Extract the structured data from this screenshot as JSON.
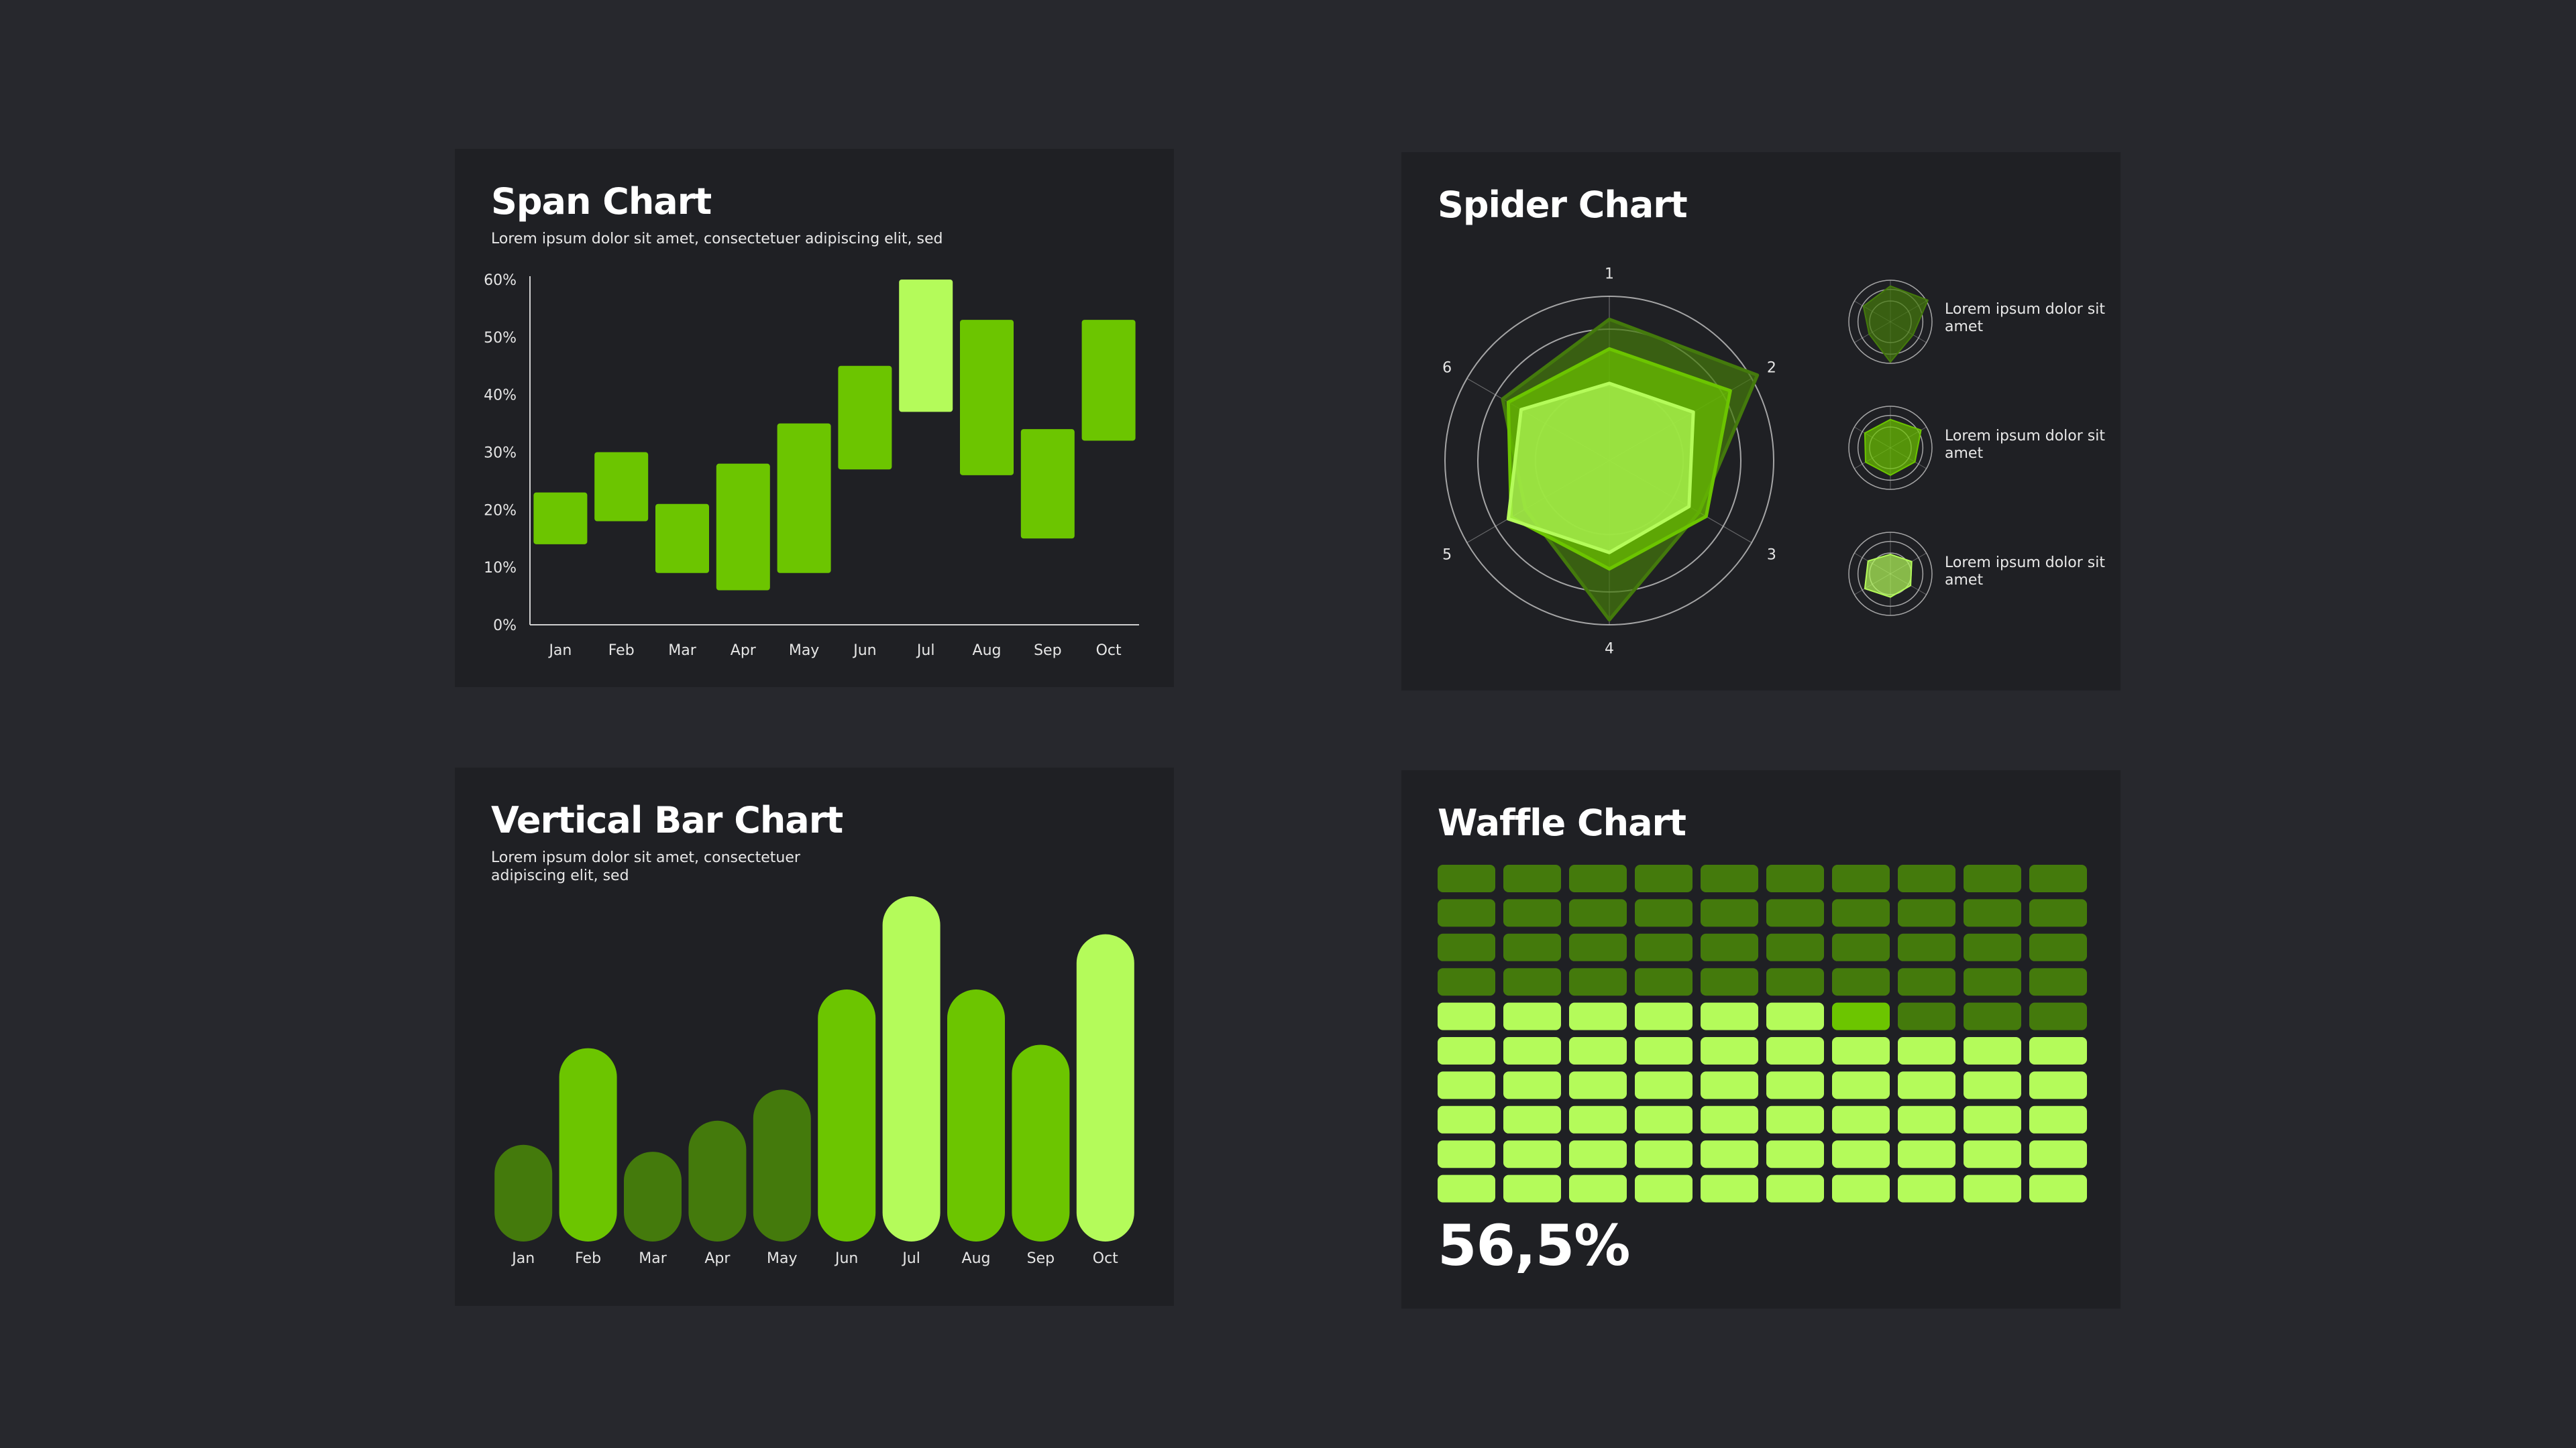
{
  "colors": {
    "background": "#27282d",
    "panel": "#1f2024",
    "dark_green": "#447a0c",
    "mid_green": "#6cc500",
    "light_green": "#b4fb5a"
  },
  "span": {
    "title": "Span Chart",
    "subtitle": "Lorem ipsum dolor sit amet, consectetuer adipiscing elit, sed"
  },
  "spider": {
    "title": "Spider Chart",
    "legend": [
      {
        "label": "Lorem ipsum dolor sit amet",
        "color": "#b4fb5a"
      },
      {
        "label": "Lorem ipsum dolor sit amet",
        "color": "#6cc500"
      },
      {
        "label": "Lorem ipsum dolor sit amet",
        "color": "#447a0c"
      }
    ]
  },
  "vbar": {
    "title": "Vertical Bar Chart",
    "subtitle": "Lorem ipsum dolor sit amet, consectetuer adipiscing elit, sed"
  },
  "waffle": {
    "title": "Waffle Chart",
    "value_label": "56,5%"
  },
  "chart_data": [
    {
      "type": "bar",
      "subtype": "span",
      "title": "Span Chart",
      "categories": [
        "Jan",
        "Feb",
        "Mar",
        "Apr",
        "May",
        "Jun",
        "Jul",
        "Aug",
        "Sep",
        "Oct"
      ],
      "ranges": [
        [
          14,
          23
        ],
        [
          18,
          30
        ],
        [
          9,
          21
        ],
        [
          6,
          28
        ],
        [
          9,
          35
        ],
        [
          27,
          45
        ],
        [
          37,
          60
        ],
        [
          26,
          53
        ],
        [
          15,
          34
        ],
        [
          32,
          53
        ]
      ],
      "highlight_index": 6,
      "ylim": [
        0,
        60
      ],
      "yticks": [
        "0%",
        "10%",
        "20%",
        "30%",
        "40%",
        "50%",
        "60%"
      ],
      "xlabel": "",
      "ylabel": ""
    },
    {
      "type": "radar",
      "title": "Spider Chart",
      "axes": [
        "1",
        "2",
        "3",
        "4",
        "5",
        "6"
      ],
      "rmax": 100,
      "series": [
        {
          "values": [
            86,
            104,
            63,
            97,
            59,
            75
          ],
          "color": "#447a0c"
        },
        {
          "values": [
            68,
            85,
            68,
            66,
            69,
            71
          ],
          "color": "#6cc500"
        },
        {
          "values": [
            47,
            59,
            56,
            56,
            71,
            62
          ],
          "color": "#b4fb5a"
        }
      ]
    },
    {
      "type": "bar",
      "title": "Vertical Bar Chart",
      "categories": [
        "Jan",
        "Feb",
        "Mar",
        "Apr",
        "May",
        "Jun",
        "Jul",
        "Aug",
        "Sep",
        "Oct"
      ],
      "values": [
        28,
        56,
        26,
        35,
        44,
        73,
        100,
        73,
        57,
        89
      ],
      "colors": [
        "#447a0c",
        "#6cc500",
        "#447a0c",
        "#447a0c",
        "#447a0c",
        "#6cc500",
        "#b4fb5a",
        "#6cc500",
        "#6cc500",
        "#b4fb5a"
      ],
      "xlabel": "",
      "ylabel": ""
    },
    {
      "type": "waffle",
      "title": "Waffle Chart",
      "rows": 10,
      "cols": 10,
      "filled_cells": 56.5,
      "label": "56,5%"
    }
  ]
}
